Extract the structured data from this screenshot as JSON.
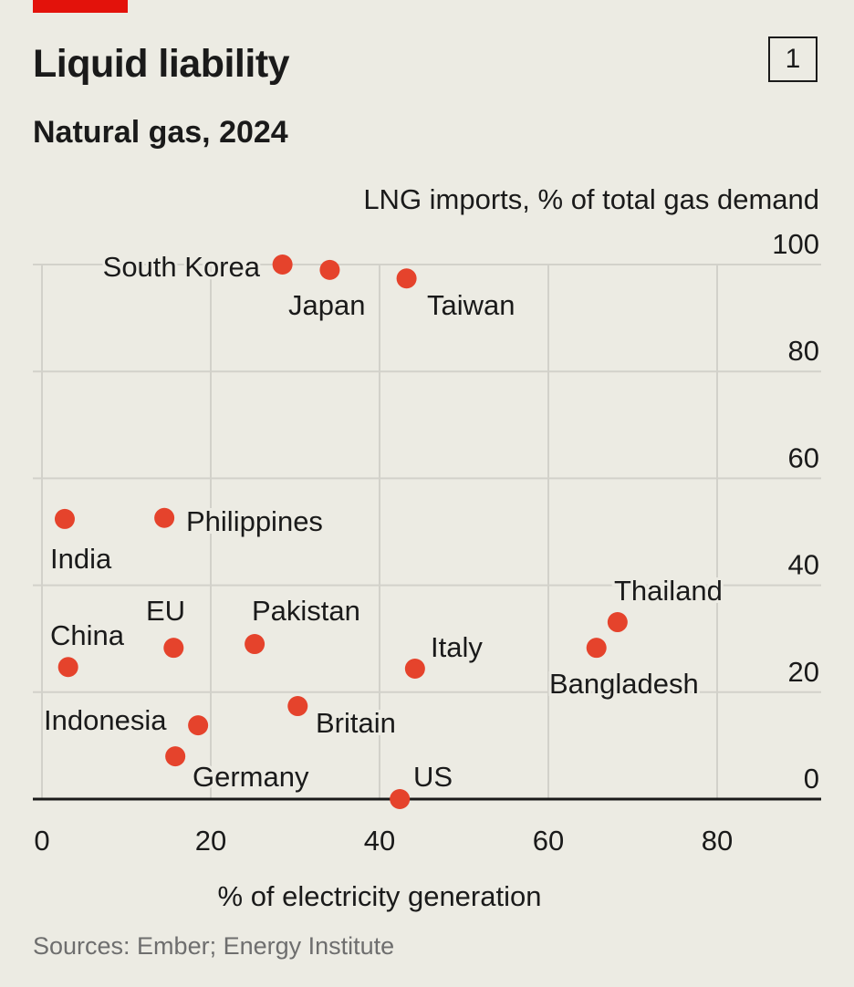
{
  "header": {
    "title": "Liquid liability",
    "subtitle": "Natural gas, 2024",
    "chart_number": "1"
  },
  "source": "Sources: Ember; Energy Institute",
  "colors": {
    "dot": "#e5432c",
    "accent": "#e3120b",
    "background": "#ecebe3",
    "grid": "#d2d1ca"
  },
  "chart_data": {
    "type": "scatter",
    "title": "Liquid liability",
    "subtitle": "Natural gas, 2024",
    "xlabel": "% of electricity generation",
    "ylabel": "LNG imports, % of total gas demand",
    "xlim": [
      0,
      92
    ],
    "ylim": [
      0,
      100
    ],
    "xticks": [
      "0",
      "20",
      "40",
      "60",
      "80"
    ],
    "yticks": [
      "0",
      "20",
      "40",
      "60",
      "80",
      "100"
    ],
    "grid": true,
    "points": [
      {
        "label": "South Korea",
        "x": 28.5,
        "y": 100
      },
      {
        "label": "Japan",
        "x": 34.1,
        "y": 99
      },
      {
        "label": "Taiwan",
        "x": 43.2,
        "y": 97.4
      },
      {
        "label": "India",
        "x": 2.7,
        "y": 52.4
      },
      {
        "label": "Philippines",
        "x": 14.5,
        "y": 52.6
      },
      {
        "label": "China",
        "x": 3.1,
        "y": 24.7
      },
      {
        "label": "EU",
        "x": 15.6,
        "y": 28.3
      },
      {
        "label": "Pakistan",
        "x": 25.2,
        "y": 29
      },
      {
        "label": "Italy",
        "x": 44.2,
        "y": 24.4
      },
      {
        "label": "Thailand",
        "x": 68.2,
        "y": 33.1
      },
      {
        "label": "Bangladesh",
        "x": 65.7,
        "y": 28.3
      },
      {
        "label": "Britain",
        "x": 30.3,
        "y": 17.4
      },
      {
        "label": "Indonesia",
        "x": 18.5,
        "y": 13.8
      },
      {
        "label": "Germany",
        "x": 15.8,
        "y": 8
      },
      {
        "label": "US",
        "x": 42.4,
        "y": 0
      }
    ]
  }
}
